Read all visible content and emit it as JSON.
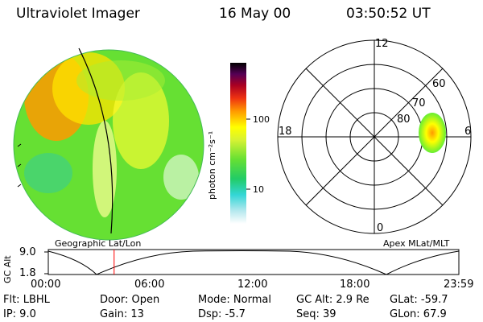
{
  "header": {
    "instrument": "Ultraviolet Imager",
    "date": "16 May 00",
    "time": "03:50:52 UT"
  },
  "colorbar": {
    "unit_label": "photon cm⁻²s⁻¹",
    "tick_100": "100",
    "tick_10": "10",
    "scale": "log"
  },
  "polar": {
    "mlt_labels": [
      "12",
      "18",
      "6",
      "0"
    ],
    "lat_labels": [
      "60",
      "70",
      "80"
    ]
  },
  "labels": {
    "geo": "Geographic Lat/Lon",
    "apex": "Apex  MLat/MLT"
  },
  "altitude_plot": {
    "ylabel": "GC Alt",
    "ytick_top": "9.0",
    "ytick_bottom": "1.8",
    "xticks": [
      "00:00",
      "06:00",
      "12:00",
      "18:00",
      "23:59"
    ],
    "current_time_fraction": 0.1603
  },
  "info": {
    "flt": "Flt: LBHL",
    "ip": "IP:  9.0",
    "door": "Door: Open",
    "gain": "Gain: 13",
    "mode": "Mode: Normal",
    "dsp": "Dsp:    -5.7",
    "gcalt": "GC Alt: 2.9 Re",
    "seq": "Seq: 39",
    "glat": "GLat:  -59.7",
    "glon": "GLon:  67.9"
  },
  "colors": {
    "terminator": "#000000",
    "time_marker": "#ff0000",
    "blob_high": "#ff9900",
    "blob_mid": "#ffff00",
    "blob_low": "#66ee33"
  }
}
